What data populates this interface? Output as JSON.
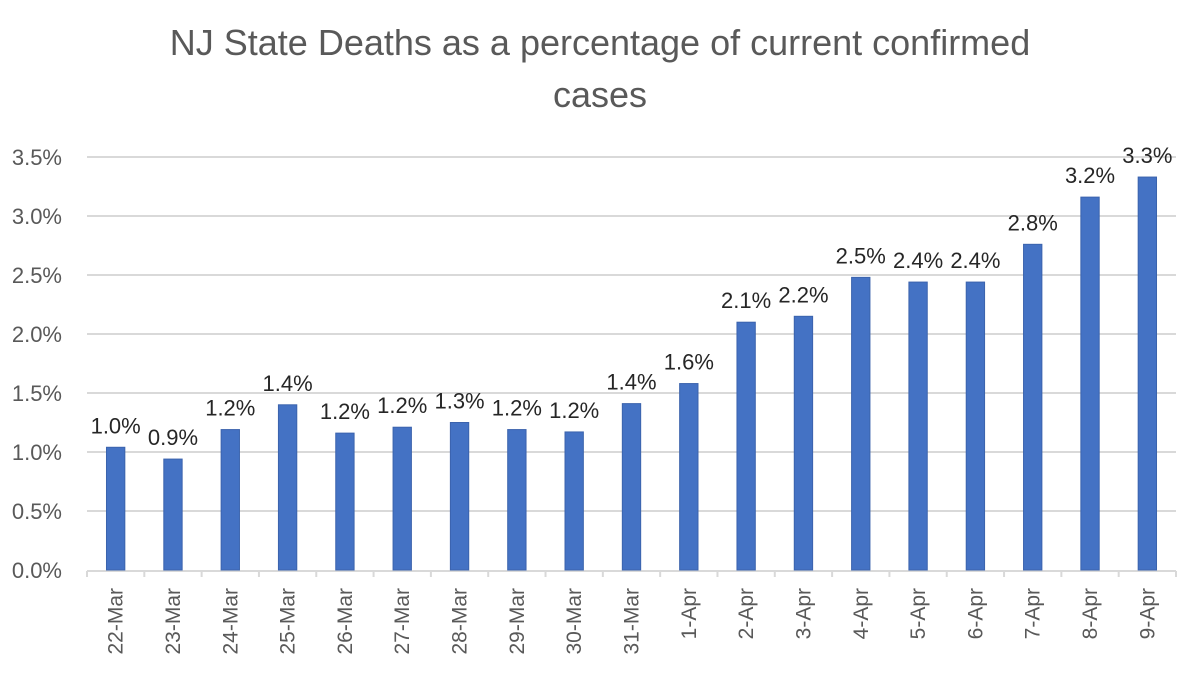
{
  "chart_data": {
    "type": "bar",
    "title": "NJ State Deaths as a percentage of current confirmed cases",
    "title_lines": [
      "NJ State Deaths as a percentage of current confirmed",
      "cases"
    ],
    "xlabel": "",
    "ylabel": "",
    "categories": [
      "22-Mar",
      "23-Mar",
      "24-Mar",
      "25-Mar",
      "26-Mar",
      "27-Mar",
      "28-Mar",
      "29-Mar",
      "30-Mar",
      "31-Mar",
      "1-Apr",
      "2-Apr",
      "3-Apr",
      "4-Apr",
      "5-Apr",
      "6-Apr",
      "7-Apr",
      "8-Apr",
      "9-Apr"
    ],
    "values": [
      1.04,
      0.94,
      1.19,
      1.4,
      1.16,
      1.21,
      1.25,
      1.19,
      1.17,
      1.41,
      1.58,
      2.1,
      2.15,
      2.48,
      2.44,
      2.44,
      2.76,
      3.16,
      3.33
    ],
    "data_labels": [
      "1.0%",
      "0.9%",
      "1.2%",
      "1.4%",
      "1.2%",
      "1.2%",
      "1.3%",
      "1.2%",
      "1.2%",
      "1.4%",
      "1.6%",
      "2.1%",
      "2.2%",
      "2.5%",
      "2.4%",
      "2.4%",
      "2.8%",
      "3.2%",
      "3.3%"
    ],
    "value_unit": "%",
    "ylim": [
      0,
      3.5
    ],
    "yticks": [
      0,
      0.5,
      1.0,
      1.5,
      2.0,
      2.5,
      3.0,
      3.5
    ],
    "ytick_labels": [
      "0.0%",
      "0.5%",
      "1.0%",
      "1.5%",
      "2.0%",
      "2.5%",
      "3.0%",
      "3.5%"
    ],
    "grid": true,
    "legend": "none",
    "bar_color": "#4472C4",
    "gridline_color": "#D9D9D9"
  }
}
